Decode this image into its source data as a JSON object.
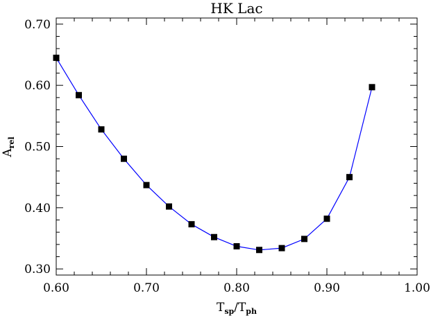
{
  "chart_data": {
    "type": "line",
    "title": "HK Lac",
    "xlabel": {
      "main": "T",
      "sub1": "sp",
      "slash": "/T",
      "sub2": "ph"
    },
    "ylabel": {
      "main": "A",
      "sub": "rel"
    },
    "xlim": [
      0.6,
      1.0
    ],
    "ylim": [
      0.29,
      0.71
    ],
    "xticks": [
      "0.60",
      "0.70",
      "0.80",
      "0.90",
      "1.00"
    ],
    "yticks": [
      "0.30",
      "0.40",
      "0.50",
      "0.60",
      "0.70"
    ],
    "line_color": "#0000ff",
    "marker_color": "#000000",
    "grid": false,
    "series": [
      {
        "x": [
          0.6,
          0.625,
          0.65,
          0.675,
          0.7,
          0.725,
          0.75,
          0.775,
          0.8,
          0.825,
          0.85,
          0.875,
          0.9,
          0.925,
          0.95
        ],
        "y": [
          0.645,
          0.584,
          0.528,
          0.48,
          0.437,
          0.402,
          0.373,
          0.352,
          0.337,
          0.331,
          0.334,
          0.349,
          0.382,
          0.45,
          0.597
        ]
      }
    ]
  }
}
